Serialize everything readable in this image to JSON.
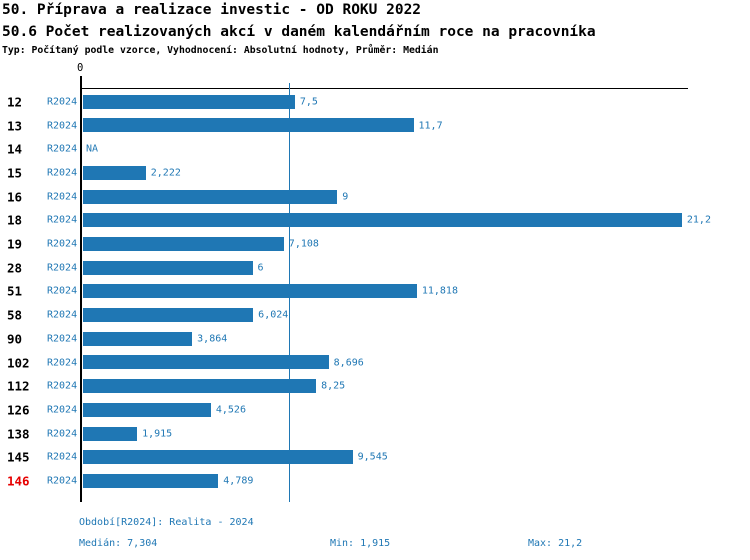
{
  "header": {
    "title_line1": "50. Příprava a realizace investic - OD ROKU 2022",
    "title_line2": "50.6 Počet realizovaných akcí v daném kalendářním roce na pracovníka",
    "subtitle": "Typ: Počítaný podle vzorce, Vyhodnocení: Absolutní hodnoty, Průměr: Medián"
  },
  "chart_data": {
    "type": "bar",
    "orientation": "horizontal",
    "x_axis": {
      "zero_label": "0",
      "xlim": [
        0,
        21.4
      ],
      "grid": false
    },
    "median": {
      "value": 7.304,
      "label": "7,304"
    },
    "categories": [
      "12",
      "13",
      "14",
      "15",
      "16",
      "18",
      "19",
      "28",
      "51",
      "58",
      "90",
      "102",
      "112",
      "126",
      "138",
      "145",
      "146"
    ],
    "rows": [
      {
        "id": "12",
        "period": "R2024",
        "value": 7.5,
        "label": "7,5",
        "highlight": false
      },
      {
        "id": "13",
        "period": "R2024",
        "value": 11.7,
        "label": "11,7",
        "highlight": false
      },
      {
        "id": "14",
        "period": "R2024",
        "value": null,
        "label": "NA",
        "highlight": false
      },
      {
        "id": "15",
        "period": "R2024",
        "value": 2.222,
        "label": "2,222",
        "highlight": false
      },
      {
        "id": "16",
        "period": "R2024",
        "value": 9,
        "label": "9",
        "highlight": false
      },
      {
        "id": "18",
        "period": "R2024",
        "value": 21.2,
        "label": "21,2",
        "highlight": false
      },
      {
        "id": "19",
        "period": "R2024",
        "value": 7.108,
        "label": "7,108",
        "highlight": false
      },
      {
        "id": "28",
        "period": "R2024",
        "value": 6,
        "label": "6",
        "highlight": false
      },
      {
        "id": "51",
        "period": "R2024",
        "value": 11.818,
        "label": "11,818",
        "highlight": false
      },
      {
        "id": "58",
        "period": "R2024",
        "value": 6.024,
        "label": "6,024",
        "highlight": false
      },
      {
        "id": "90",
        "period": "R2024",
        "value": 3.864,
        "label": "3,864",
        "highlight": false
      },
      {
        "id": "102",
        "period": "R2024",
        "value": 8.696,
        "label": "8,696",
        "highlight": false
      },
      {
        "id": "112",
        "period": "R2024",
        "value": 8.25,
        "label": "8,25",
        "highlight": false
      },
      {
        "id": "126",
        "period": "R2024",
        "value": 4.526,
        "label": "4,526",
        "highlight": false
      },
      {
        "id": "138",
        "period": "R2024",
        "value": 1.915,
        "label": "1,915",
        "highlight": false
      },
      {
        "id": "145",
        "period": "R2024",
        "value": 9.545,
        "label": "9,545",
        "highlight": false
      },
      {
        "id": "146",
        "period": "R2024",
        "value": 4.789,
        "label": "4,789",
        "highlight": true
      }
    ]
  },
  "footer": {
    "period": "Období[R2024]: Realita - 2024",
    "median": "Medián: 7,304",
    "min": "Min: 1,915",
    "max": "Max: 21,2"
  },
  "colors": {
    "bar_blue": "#1F77B4",
    "text_blue": "#1F77B4",
    "highlight_red": "#E60000",
    "axis_black": "#000000"
  }
}
